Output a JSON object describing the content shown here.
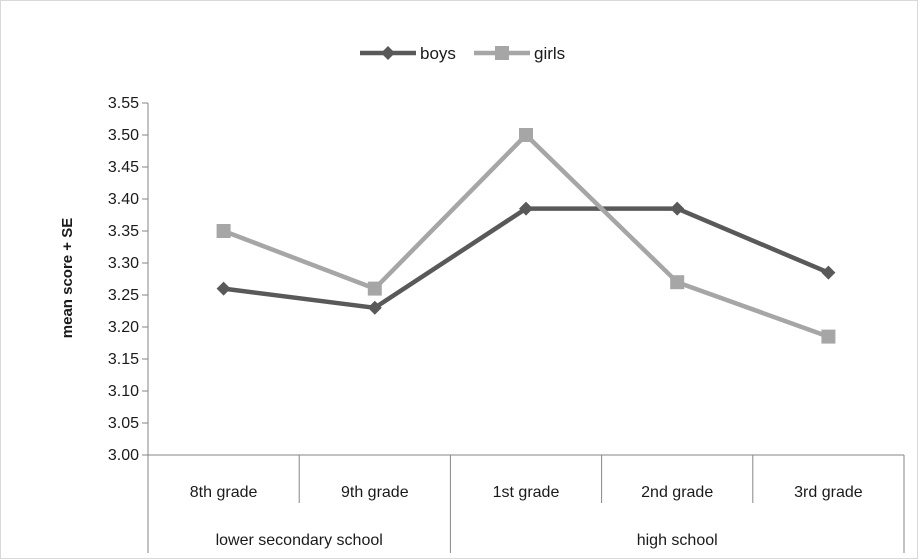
{
  "chart_data": {
    "type": "line",
    "categories": [
      "8th grade",
      "9th grade",
      "1st grade",
      "2nd grade",
      "3rd grade"
    ],
    "groups": [
      {
        "label": "lower secondary school",
        "span": 2
      },
      {
        "label": "high school",
        "span": 3
      }
    ],
    "series": [
      {
        "name": "boys",
        "values": [
          3.26,
          3.23,
          3.385,
          3.385,
          3.285
        ],
        "color": "#595959",
        "marker": "diamond"
      },
      {
        "name": "girls",
        "values": [
          3.35,
          3.26,
          3.5,
          3.27,
          3.185
        ],
        "color": "#a6a6a6",
        "marker": "square"
      }
    ],
    "ylabel": "mean score + SE",
    "xlabel": "",
    "ylim": [
      3.0,
      3.55
    ],
    "yticks": [
      "3.00",
      "3.05",
      "3.10",
      "3.15",
      "3.20",
      "3.25",
      "3.30",
      "3.35",
      "3.40",
      "3.45",
      "3.50",
      "3.55"
    ],
    "legend_position": "top-center",
    "grid": false
  }
}
